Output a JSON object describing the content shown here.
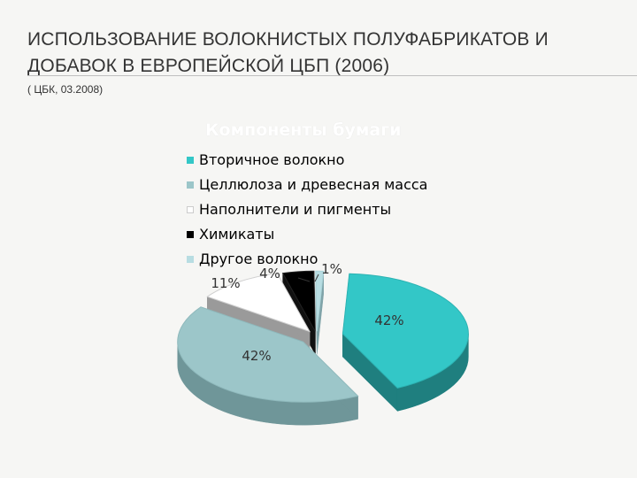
{
  "slide": {
    "title_line1": "ИСПОЛЬЗОВАНИЕ ВОЛОКНИСТЫХ ПОЛУФАБРИКАТОВ И",
    "title_line2": "ДОБАВОК В ЕВРОПЕЙСКОЙ ЦБП (2006)",
    "subtitle": "( ЦБК, 03.2008)"
  },
  "chart_data": {
    "type": "pie",
    "title": "Компоненты бумаги",
    "legend_position": "top",
    "categories": [
      "Вторичное волокно",
      "Целлюлоза и древесная масса",
      "Наполнители и пигменты",
      "Химикаты",
      "Другое волокно"
    ],
    "values": [
      42,
      42,
      11,
      4,
      1
    ],
    "labels": [
      "42%",
      "42%",
      "11%",
      "4%",
      "1%"
    ],
    "colors": [
      "#33c7c7",
      "#9cc6c9",
      "#ffffff",
      "#000000",
      "#b8dde2"
    ],
    "exploded": true,
    "three_d": true
  }
}
